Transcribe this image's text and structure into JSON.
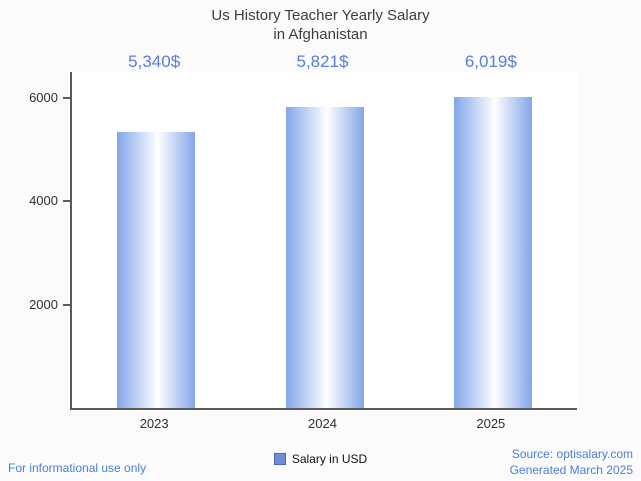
{
  "title": {
    "line1": "Us History Teacher Yearly Salary",
    "line2": "in Afghanistan"
  },
  "chart_data": {
    "type": "bar",
    "title": "Us History Teacher Yearly Salary in Afghanistan",
    "categories": [
      "2023",
      "2024",
      "2025"
    ],
    "values": [
      5340,
      5821,
      6019
    ],
    "value_labels": [
      "5,340$",
      "5,821$",
      "6,019$"
    ],
    "xlabel": "",
    "ylabel": "",
    "ylim": [
      0,
      6500
    ],
    "yticks": [
      2000,
      4000,
      6000
    ],
    "grid": false,
    "legend": {
      "label": "Salary in USD",
      "position": "bottom"
    },
    "bar_edge_color": "#83a6e8",
    "bar_center_color": "#ffffff"
  },
  "footer": {
    "left": "For informational use only",
    "source": "Source: optisalary.com",
    "generated": "Generated March 2025"
  },
  "colors": {
    "accent": "#5a7ed6",
    "title": "#3d3d3d",
    "axis": "#5a5a5a",
    "footer_link": "#4a7fd4"
  }
}
